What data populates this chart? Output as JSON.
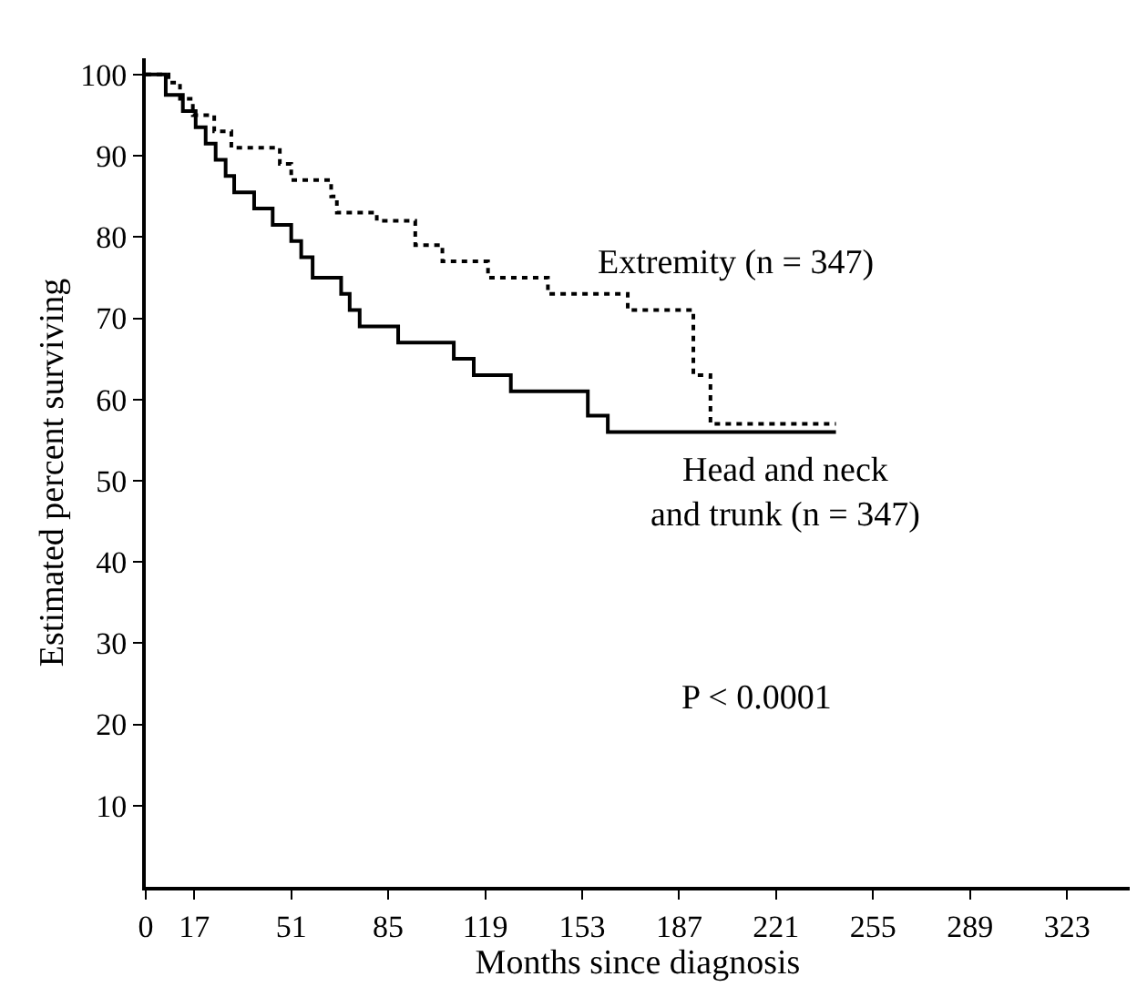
{
  "chart_data": {
    "type": "step",
    "xlabel": "Months since diagnosis",
    "ylabel": "Estimated percent surviving",
    "xlim": [
      0,
      345
    ],
    "xticks": [
      0,
      17,
      51,
      85,
      119,
      153,
      187,
      221,
      255,
      289,
      323
    ],
    "ylim": [
      0,
      102
    ],
    "yticks": [
      10,
      20,
      30,
      40,
      50,
      60,
      70,
      80,
      90,
      100
    ],
    "marker": "none",
    "series": [
      {
        "name": "Extremity (n = 347)",
        "color": "#000000",
        "line_style": "dotted",
        "x": [
          0,
          8,
          12,
          16.5,
          24,
          30,
          47,
          51,
          65,
          67,
          81,
          94.5,
          104,
          120,
          141,
          169,
          192,
          198,
          242
        ],
        "values": [
          100,
          99,
          97,
          95,
          93,
          91,
          89,
          87,
          85,
          83,
          82,
          79,
          77,
          75,
          73,
          71,
          63,
          57,
          57
        ]
      },
      {
        "name": "Head and neck\nand trunk (n = 347)",
        "color": "#000000",
        "line_style": "solid",
        "x": [
          0,
          7,
          13,
          17.5,
          21,
          24.5,
          28,
          31,
          38,
          44.5,
          51,
          54.5,
          58.5,
          68.5,
          71.5,
          75,
          88.5,
          108,
          115,
          128,
          155,
          162,
          242
        ],
        "values": [
          100,
          97.5,
          95.5,
          93.5,
          91.5,
          89.5,
          87.5,
          85.5,
          83.5,
          81.5,
          79.5,
          77.5,
          75,
          73,
          71,
          69,
          67,
          65,
          63,
          61,
          58,
          56,
          56
        ]
      }
    ],
    "annotations": [
      "P < 0.0001"
    ]
  }
}
